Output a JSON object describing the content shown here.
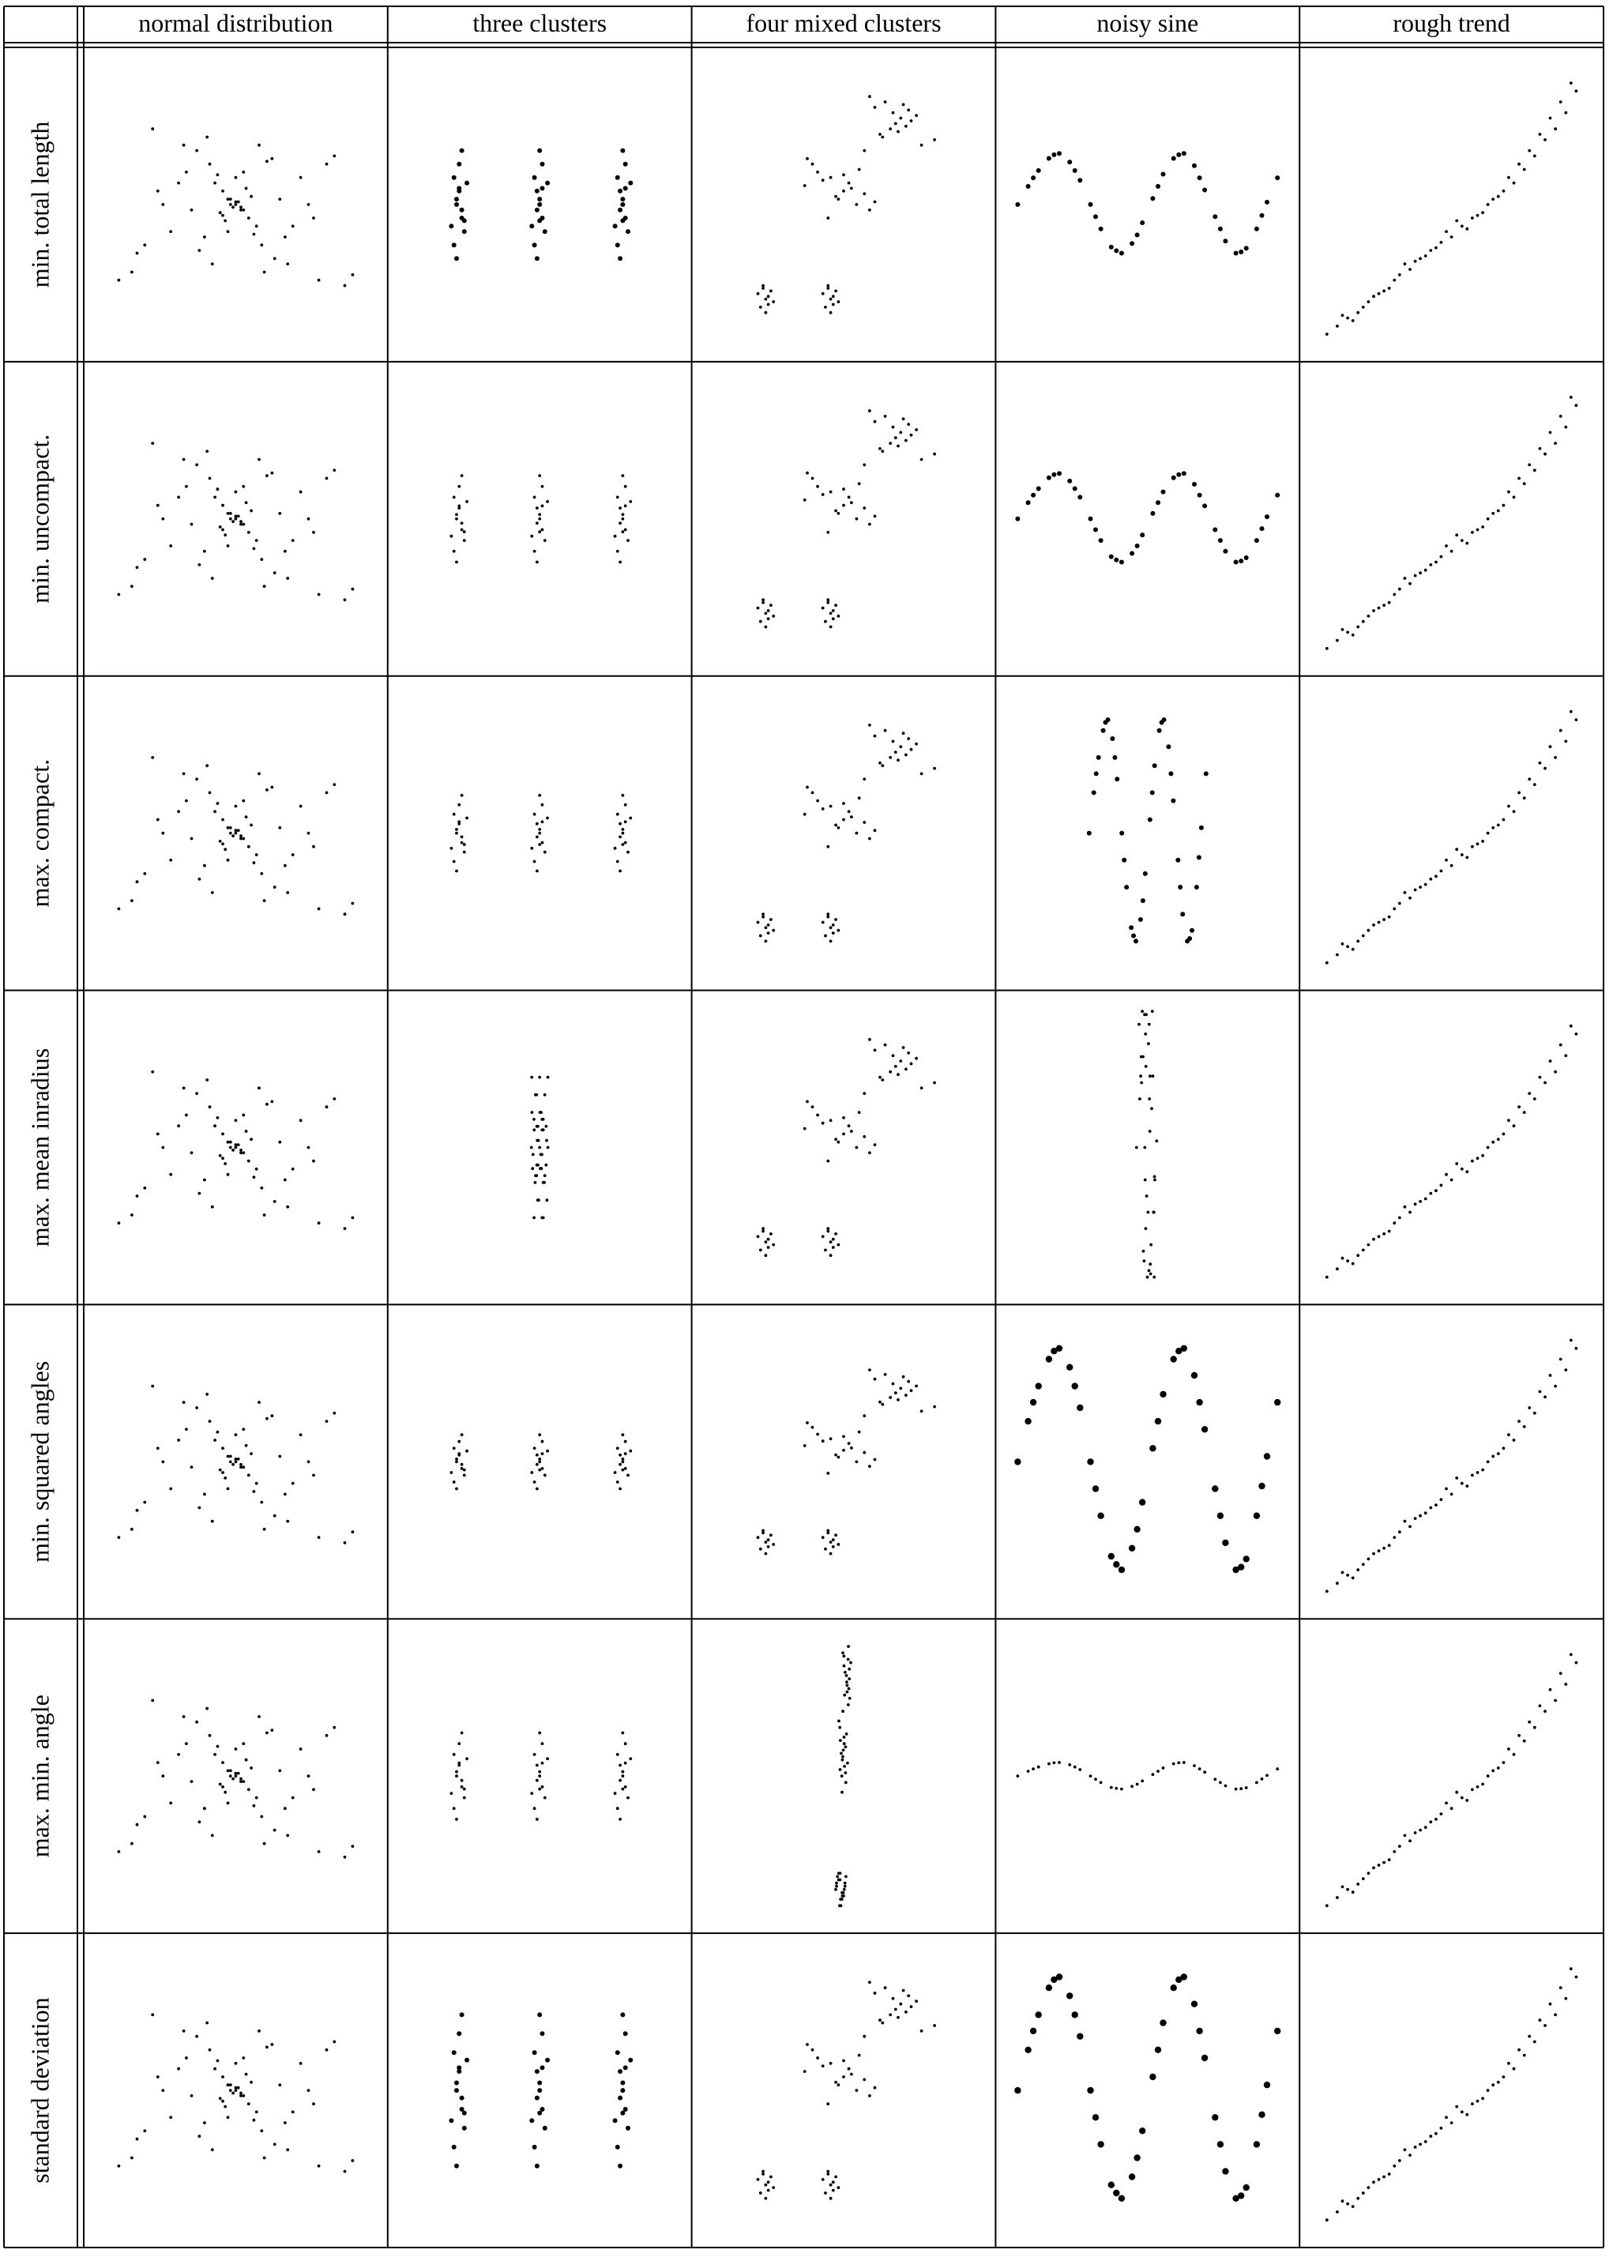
{
  "columns": [
    "normal distribution",
    "three clusters",
    "four mixed clusters",
    "noisy sine",
    "rough trend"
  ],
  "rows": [
    "min. total length",
    "min. uncompact.",
    "max. compact.",
    "max. mean inradius",
    "min. squared angles",
    "max. min. angle",
    "standard deviation"
  ],
  "chart_data": {
    "type": "scatter",
    "grid": true,
    "legend": "none",
    "axes_visible": false,
    "title": "",
    "xlabel": "",
    "ylabel": "",
    "panel_layout": "rows x columns",
    "description_of_values": "Each panel is a scatter plot of the same dataset (column) after layout by a criterion (row). No numeric axes are printed; values below are approximate normalized panel coordinates read from the image (x in [0,1] left to right, y in [0,1] bottom to top).",
    "datasets": {
      "normal distribution": {
        "x": [
          0.5,
          0.48,
          0.52,
          0.45,
          0.55,
          0.42,
          0.58,
          0.5,
          0.47,
          0.53,
          0.4,
          0.6,
          0.38,
          0.62,
          0.35,
          0.65,
          0.3,
          0.7,
          0.25,
          0.75,
          0.2,
          0.8,
          0.15,
          0.85,
          0.1,
          0.92,
          0.05,
          0.95,
          0.44,
          0.56,
          0.49,
          0.51,
          0.46,
          0.54,
          0.43,
          0.57,
          0.33,
          0.67,
          0.28,
          0.72,
          0.36,
          0.64,
          0.41,
          0.59,
          0.39,
          0.61,
          0.31,
          0.69,
          0.22,
          0.78,
          0.12,
          0.88,
          0.18,
          0.82,
          0.48,
          0.52,
          0.5,
          0.47,
          0.53,
          0.45
        ],
        "y": [
          0.5,
          0.52,
          0.48,
          0.55,
          0.45,
          0.58,
          0.42,
          0.6,
          0.4,
          0.62,
          0.65,
          0.35,
          0.38,
          0.66,
          0.7,
          0.3,
          0.72,
          0.28,
          0.4,
          0.6,
          0.55,
          0.45,
          0.35,
          0.65,
          0.25,
          0.2,
          0.22,
          0.24,
          0.47,
          0.53,
          0.49,
          0.51,
          0.44,
          0.56,
          0.61,
          0.39,
          0.48,
          0.52,
          0.58,
          0.42,
          0.33,
          0.67,
          0.28,
          0.72,
          0.75,
          0.25,
          0.62,
          0.38,
          0.5,
          0.5,
          0.32,
          0.68,
          0.78,
          0.22,
          0.5,
          0.49,
          0.51,
          0.52,
          0.48,
          0.46
        ]
      },
      "three clusters": {
        "x": [
          0.18,
          0.19,
          0.2,
          0.17,
          0.21,
          0.18,
          0.2,
          0.19,
          0.17,
          0.22,
          0.16,
          0.2,
          0.18,
          0.19,
          0.21,
          0.5,
          0.49,
          0.51,
          0.48,
          0.52,
          0.5,
          0.49,
          0.51,
          0.48,
          0.53,
          0.47,
          0.5,
          0.49,
          0.51,
          0.5,
          0.82,
          0.81,
          0.83,
          0.8,
          0.84,
          0.82,
          0.81,
          0.83,
          0.8,
          0.85,
          0.79,
          0.82,
          0.81,
          0.83,
          0.82
        ],
        "y": [
          0.5,
          0.55,
          0.45,
          0.6,
          0.4,
          0.52,
          0.48,
          0.65,
          0.35,
          0.58,
          0.42,
          0.7,
          0.3,
          0.56,
          0.44,
          0.5,
          0.55,
          0.45,
          0.6,
          0.4,
          0.52,
          0.48,
          0.65,
          0.35,
          0.58,
          0.42,
          0.7,
          0.3,
          0.56,
          0.44,
          0.5,
          0.55,
          0.45,
          0.6,
          0.4,
          0.52,
          0.48,
          0.65,
          0.35,
          0.58,
          0.42,
          0.7,
          0.3,
          0.56,
          0.44
        ]
      },
      "four mixed clusters": {
        "x": [
          0.2,
          0.22,
          0.18,
          0.21,
          0.19,
          0.23,
          0.17,
          0.2,
          0.21,
          0.19,
          0.45,
          0.47,
          0.43,
          0.46,
          0.44,
          0.48,
          0.42,
          0.45,
          0.46,
          0.44,
          0.5,
          0.45,
          0.48,
          0.52,
          0.4,
          0.55,
          0.35,
          0.58,
          0.38,
          0.6,
          0.42,
          0.53,
          0.47,
          0.5,
          0.44,
          0.56,
          0.36,
          0.62,
          0.7,
          0.72,
          0.68,
          0.75,
          0.65,
          0.78,
          0.66,
          0.74,
          0.71,
          0.69,
          0.8,
          0.62,
          0.58,
          0.85,
          0.6,
          0.76,
          0.64,
          0.73
        ],
        "y": [
          0.15,
          0.18,
          0.12,
          0.16,
          0.2,
          0.14,
          0.17,
          0.1,
          0.13,
          0.19,
          0.15,
          0.18,
          0.12,
          0.16,
          0.2,
          0.14,
          0.17,
          0.1,
          0.13,
          0.19,
          0.55,
          0.6,
          0.52,
          0.58,
          0.62,
          0.5,
          0.57,
          0.54,
          0.65,
          0.48,
          0.59,
          0.56,
          0.53,
          0.61,
          0.45,
          0.63,
          0.67,
          0.51,
          0.8,
          0.82,
          0.78,
          0.85,
          0.75,
          0.83,
          0.88,
          0.79,
          0.77,
          0.84,
          0.72,
          0.86,
          0.7,
          0.74,
          0.9,
          0.81,
          0.76,
          0.87
        ]
      },
      "noisy sine": {
        "x": [
          0.0,
          0.04,
          0.08,
          0.12,
          0.16,
          0.2,
          0.24,
          0.28,
          0.32,
          0.36,
          0.4,
          0.44,
          0.48,
          0.52,
          0.56,
          0.6,
          0.64,
          0.68,
          0.72,
          0.76,
          0.8,
          0.84,
          0.88,
          0.92,
          0.96,
          1.0,
          0.06,
          0.14,
          0.22,
          0.3,
          0.38,
          0.46,
          0.54,
          0.62,
          0.7,
          0.78,
          0.86,
          0.94
        ],
        "y": [
          0.5,
          0.65,
          0.78,
          0.88,
          0.92,
          0.85,
          0.7,
          0.5,
          0.3,
          0.15,
          0.1,
          0.18,
          0.35,
          0.55,
          0.75,
          0.88,
          0.92,
          0.82,
          0.62,
          0.4,
          0.2,
          0.1,
          0.14,
          0.3,
          0.52,
          0.72,
          0.72,
          0.91,
          0.78,
          0.4,
          0.12,
          0.25,
          0.65,
          0.91,
          0.72,
          0.3,
          0.11,
          0.41
        ]
      },
      "rough trend": {
        "x": [
          0.02,
          0.06,
          0.1,
          0.14,
          0.18,
          0.22,
          0.26,
          0.3,
          0.34,
          0.38,
          0.42,
          0.46,
          0.5,
          0.54,
          0.58,
          0.62,
          0.66,
          0.7,
          0.74,
          0.78,
          0.82,
          0.86,
          0.9,
          0.94,
          0.98,
          0.08,
          0.16,
          0.24,
          0.32,
          0.4,
          0.48,
          0.56,
          0.64,
          0.72,
          0.8,
          0.88,
          0.96,
          0.12,
          0.2,
          0.28,
          0.36,
          0.44,
          0.52,
          0.6,
          0.68,
          0.76,
          0.84,
          0.92
        ],
        "y": [
          0.02,
          0.05,
          0.08,
          0.1,
          0.14,
          0.17,
          0.19,
          0.24,
          0.26,
          0.3,
          0.33,
          0.36,
          0.38,
          0.42,
          0.45,
          0.47,
          0.52,
          0.55,
          0.58,
          0.63,
          0.68,
          0.74,
          0.78,
          0.84,
          0.92,
          0.09,
          0.12,
          0.18,
          0.28,
          0.31,
          0.4,
          0.41,
          0.5,
          0.6,
          0.7,
          0.82,
          0.95,
          0.07,
          0.16,
          0.22,
          0.29,
          0.34,
          0.44,
          0.46,
          0.53,
          0.65,
          0.76,
          0.88
        ]
      }
    },
    "row_transforms": {
      "min. total length": {
        "normal distribution": {
          "sx": 1,
          "sy": 1
        },
        "three clusters": {
          "sx": 1,
          "sy": 1
        },
        "four mixed clusters": {
          "sx": 1,
          "sy": 1
        },
        "noisy sine": {
          "sx": 1,
          "sy": 0.45
        },
        "rough trend": {
          "sx": 1,
          "sy": 1
        }
      },
      "min. uncompact.": {
        "normal distribution": {
          "sx": 1,
          "sy": 1
        },
        "three clusters": {
          "sx": 1,
          "sy": 0.8
        },
        "four mixed clusters": {
          "sx": 1,
          "sy": 1
        },
        "noisy sine": {
          "sx": 1,
          "sy": 0.4
        },
        "rough trend": {
          "sx": 1,
          "sy": 1
        }
      },
      "max. compact.": {
        "normal distribution": {
          "sx": 1,
          "sy": 1
        },
        "three clusters": {
          "sx": 1,
          "sy": 0.7
        },
        "four mixed clusters": {
          "sx": 1,
          "sy": 1
        },
        "noisy sine": {
          "sx": 0.45,
          "sy": 1.0
        },
        "rough trend": {
          "sx": 1,
          "sy": 1
        }
      },
      "max. mean inradius": {
        "normal distribution": {
          "sx": 1,
          "sy": 1
        },
        "three clusters": {
          "sx": 0.06,
          "sy": 1.3
        },
        "four mixed clusters": {
          "sx": 1,
          "sy": 1
        },
        "noisy sine": {
          "sx": 0.06,
          "sy": 1.2
        },
        "rough trend": {
          "sx": 1,
          "sy": 1
        }
      },
      "min. squared angles": {
        "normal distribution": {
          "sx": 1,
          "sy": 1
        },
        "three clusters": {
          "sx": 1,
          "sy": 0.5
        },
        "four mixed clusters": {
          "sx": 1,
          "sy": 0.85
        },
        "noisy sine": {
          "sx": 1,
          "sy": 1.0
        },
        "rough trend": {
          "sx": 1,
          "sy": 1
        }
      },
      "max. min. angle": {
        "normal distribution": {
          "sx": 1,
          "sy": 1
        },
        "three clusters": {
          "sx": 1,
          "sy": 0.8
        },
        "four mixed clusters": {
          "sx": 0.06,
          "sy": 1.2
        },
        "noisy sine": {
          "sx": 1,
          "sy": 0.12
        },
        "rough trend": {
          "sx": 1,
          "sy": 1
        }
      },
      "standard deviation": {
        "normal distribution": {
          "sx": 1,
          "sy": 1
        },
        "three clusters": {
          "sx": 1,
          "sy": 1.4
        },
        "four mixed clusters": {
          "sx": 1,
          "sy": 1
        },
        "noisy sine": {
          "sx": 1,
          "sy": 1.0
        },
        "rough trend": {
          "sx": 1,
          "sy": 1
        }
      }
    },
    "marker_weight": {
      "min. total length": [
        1,
        2,
        1,
        2,
        1
      ],
      "min. uncompact.": [
        1,
        1,
        1,
        2,
        1
      ],
      "max. compact.": [
        1,
        1,
        1,
        2,
        1
      ],
      "max. mean inradius": [
        1,
        1,
        1,
        1,
        1
      ],
      "min. squared angles": [
        1,
        1,
        1,
        3,
        1
      ],
      "max. min. angle": [
        1,
        1,
        1,
        1,
        1
      ],
      "standard deviation": [
        1,
        2,
        1,
        3,
        1
      ]
    }
  }
}
